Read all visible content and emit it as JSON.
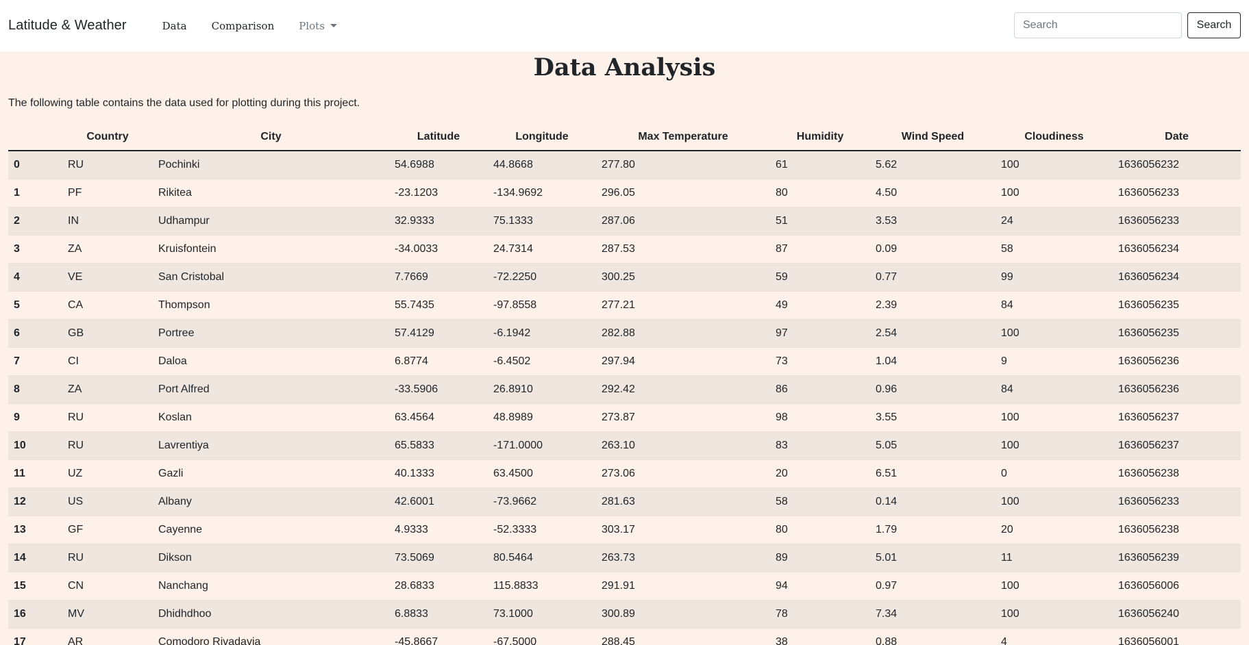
{
  "nav": {
    "brand": "Latitude & Weather",
    "links": [
      "Data",
      "Comparison"
    ],
    "dropdown_label": "Plots",
    "search_placeholder": "Search",
    "search_button": "Search"
  },
  "page": {
    "title": "Data Analysis",
    "intro": "The following table contains the data used for plotting during this project."
  },
  "table": {
    "headers": [
      "",
      "Country",
      "City",
      "Latitude",
      "Longitude",
      "Max Temperature",
      "Humidity",
      "Wind Speed",
      "Cloudiness",
      "Date"
    ],
    "rows": [
      [
        "0",
        "RU",
        "Pochinki",
        "54.6988",
        "44.8668",
        "277.80",
        "61",
        "5.62",
        "100",
        "1636056232"
      ],
      [
        "1",
        "PF",
        "Rikitea",
        "-23.1203",
        "-134.9692",
        "296.05",
        "80",
        "4.50",
        "100",
        "1636056233"
      ],
      [
        "2",
        "IN",
        "Udhampur",
        "32.9333",
        "75.1333",
        "287.06",
        "51",
        "3.53",
        "24",
        "1636056233"
      ],
      [
        "3",
        "ZA",
        "Kruisfontein",
        "-34.0033",
        "24.7314",
        "287.53",
        "87",
        "0.09",
        "58",
        "1636056234"
      ],
      [
        "4",
        "VE",
        "San Cristobal",
        "7.7669",
        "-72.2250",
        "300.25",
        "59",
        "0.77",
        "99",
        "1636056234"
      ],
      [
        "5",
        "CA",
        "Thompson",
        "55.7435",
        "-97.8558",
        "277.21",
        "49",
        "2.39",
        "84",
        "1636056235"
      ],
      [
        "6",
        "GB",
        "Portree",
        "57.4129",
        "-6.1942",
        "282.88",
        "97",
        "2.54",
        "100",
        "1636056235"
      ],
      [
        "7",
        "CI",
        "Daloa",
        "6.8774",
        "-6.4502",
        "297.94",
        "73",
        "1.04",
        "9",
        "1636056236"
      ],
      [
        "8",
        "ZA",
        "Port Alfred",
        "-33.5906",
        "26.8910",
        "292.42",
        "86",
        "0.96",
        "84",
        "1636056236"
      ],
      [
        "9",
        "RU",
        "Koslan",
        "63.4564",
        "48.8989",
        "273.87",
        "98",
        "3.55",
        "100",
        "1636056237"
      ],
      [
        "10",
        "RU",
        "Lavrentiya",
        "65.5833",
        "-171.0000",
        "263.10",
        "83",
        "5.05",
        "100",
        "1636056237"
      ],
      [
        "11",
        "UZ",
        "Gazli",
        "40.1333",
        "63.4500",
        "273.06",
        "20",
        "6.51",
        "0",
        "1636056238"
      ],
      [
        "12",
        "US",
        "Albany",
        "42.6001",
        "-73.9662",
        "281.63",
        "58",
        "0.14",
        "100",
        "1636056233"
      ],
      [
        "13",
        "GF",
        "Cayenne",
        "4.9333",
        "-52.3333",
        "303.17",
        "80",
        "1.79",
        "20",
        "1636056238"
      ],
      [
        "14",
        "RU",
        "Dikson",
        "73.5069",
        "80.5464",
        "263.73",
        "89",
        "5.01",
        "11",
        "1636056239"
      ],
      [
        "15",
        "CN",
        "Nanchang",
        "28.6833",
        "115.8833",
        "291.91",
        "94",
        "0.97",
        "100",
        "1636056006"
      ],
      [
        "16",
        "MV",
        "Dhidhdhoo",
        "6.8833",
        "73.1000",
        "300.89",
        "78",
        "7.34",
        "100",
        "1636056240"
      ],
      [
        "17",
        "AR",
        "Comodoro Rivadavia",
        "-45.8667",
        "-67.5000",
        "288.45",
        "38",
        "0.88",
        "4",
        "1636056001"
      ]
    ]
  }
}
